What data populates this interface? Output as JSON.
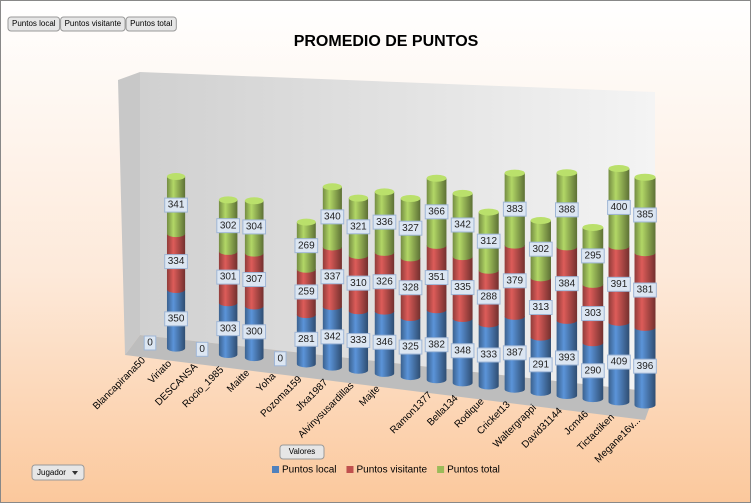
{
  "chart_data": {
    "type": "bar3d",
    "title": "PROMEDIO DE PUNTOS",
    "field_buttons": [
      "Puntos local",
      "Puntos visitante",
      "Puntos total"
    ],
    "values_button": "Valores",
    "axis_field": "Jugador",
    "categories": [
      "Blancapirana50",
      "Viriato",
      "DESCANSA",
      "Rocio_1985",
      "Maitte",
      "Yoha",
      "Pozoma159",
      "Jfxa1987",
      "Alvinysusardillas",
      "Majte",
      null,
      "Ramon1377",
      "Bella134",
      "Rodique",
      "Cricket13",
      "Waltergrappi",
      "David31144",
      "Jcm46",
      "Tictactiken",
      "Megane16v..."
    ],
    "series": [
      {
        "name": "Puntos local",
        "color": "#4f81bd",
        "values": [
          0,
          350,
          0,
          303,
          300,
          0,
          281,
          342,
          333,
          346,
          325,
          382,
          348,
          333,
          387,
          291,
          393,
          290,
          409,
          396
        ]
      },
      {
        "name": "Puntos visitante",
        "color": "#c0504d",
        "values": [
          0,
          334,
          0,
          301,
          307,
          0,
          259,
          337,
          310,
          326,
          328,
          351,
          335,
          288,
          379,
          313,
          384,
          303,
          391,
          381
        ]
      },
      {
        "name": "Puntos total",
        "color": "#9bbb59",
        "values": [
          0,
          341,
          0,
          302,
          304,
          0,
          269,
          340,
          321,
          336,
          327,
          366,
          342,
          312,
          383,
          302,
          388,
          295,
          400,
          385
        ]
      }
    ],
    "ylim": [
      0,
      1300
    ],
    "legend": "bottom"
  }
}
